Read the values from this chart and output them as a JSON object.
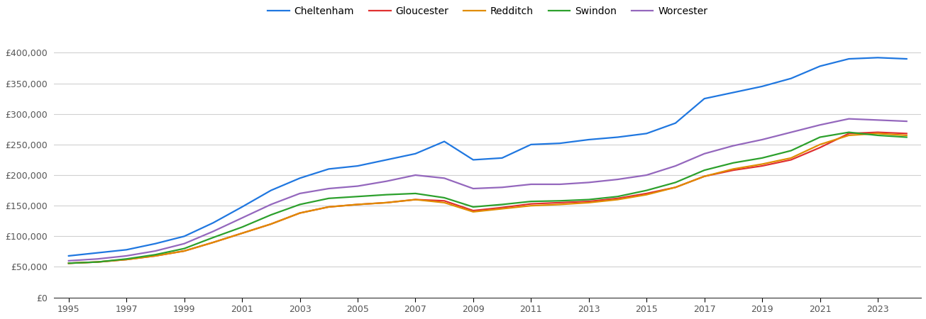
{
  "legend_labels": [
    "Cheltenham",
    "Gloucester",
    "Redditch",
    "Swindon",
    "Worcester"
  ],
  "line_colors": [
    "#1f77e0",
    "#e03030",
    "#e08c00",
    "#2ca02c",
    "#9467bd"
  ],
  "years": [
    1995,
    1996,
    1997,
    1998,
    1999,
    2000,
    2001,
    2002,
    2003,
    2004,
    2005,
    2006,
    2007,
    2008,
    2009,
    2010,
    2011,
    2012,
    2013,
    2014,
    2015,
    2016,
    2017,
    2018,
    2019,
    2020,
    2021,
    2022,
    2023,
    2024
  ],
  "Cheltenham": [
    68000,
    73000,
    78000,
    88000,
    100000,
    122000,
    148000,
    175000,
    195000,
    210000,
    215000,
    225000,
    235000,
    255000,
    225000,
    228000,
    250000,
    252000,
    258000,
    262000,
    268000,
    285000,
    325000,
    335000,
    345000,
    358000,
    378000,
    390000,
    392000,
    390000
  ],
  "Gloucester": [
    56000,
    58000,
    62000,
    68000,
    76000,
    90000,
    105000,
    120000,
    138000,
    148000,
    152000,
    155000,
    160000,
    158000,
    142000,
    147000,
    153000,
    155000,
    157000,
    162000,
    170000,
    180000,
    198000,
    208000,
    215000,
    225000,
    245000,
    268000,
    270000,
    268000
  ],
  "Redditch": [
    56000,
    58000,
    62000,
    68000,
    76000,
    90000,
    105000,
    120000,
    138000,
    148000,
    152000,
    155000,
    160000,
    155000,
    140000,
    145000,
    150000,
    152000,
    155000,
    160000,
    168000,
    180000,
    198000,
    210000,
    218000,
    228000,
    250000,
    265000,
    268000,
    265000
  ],
  "Swindon": [
    56000,
    58000,
    63000,
    70000,
    80000,
    98000,
    115000,
    135000,
    152000,
    162000,
    165000,
    168000,
    170000,
    163000,
    148000,
    152000,
    157000,
    158000,
    160000,
    165000,
    175000,
    188000,
    208000,
    220000,
    228000,
    240000,
    262000,
    270000,
    265000,
    262000
  ],
  "Worcester": [
    60000,
    63000,
    68000,
    76000,
    88000,
    108000,
    130000,
    152000,
    170000,
    178000,
    182000,
    190000,
    200000,
    195000,
    178000,
    180000,
    185000,
    185000,
    188000,
    193000,
    200000,
    215000,
    235000,
    248000,
    258000,
    270000,
    282000,
    292000,
    290000,
    288000
  ],
  "ylim": [
    0,
    430000
  ],
  "yticks": [
    0,
    50000,
    100000,
    150000,
    200000,
    250000,
    300000,
    350000,
    400000
  ],
  "xticks": [
    1995,
    1997,
    1999,
    2001,
    2003,
    2005,
    2007,
    2009,
    2011,
    2013,
    2015,
    2017,
    2019,
    2021,
    2023
  ],
  "background_color": "#ffffff",
  "grid_color": "#d0d0d0",
  "line_width": 1.6
}
